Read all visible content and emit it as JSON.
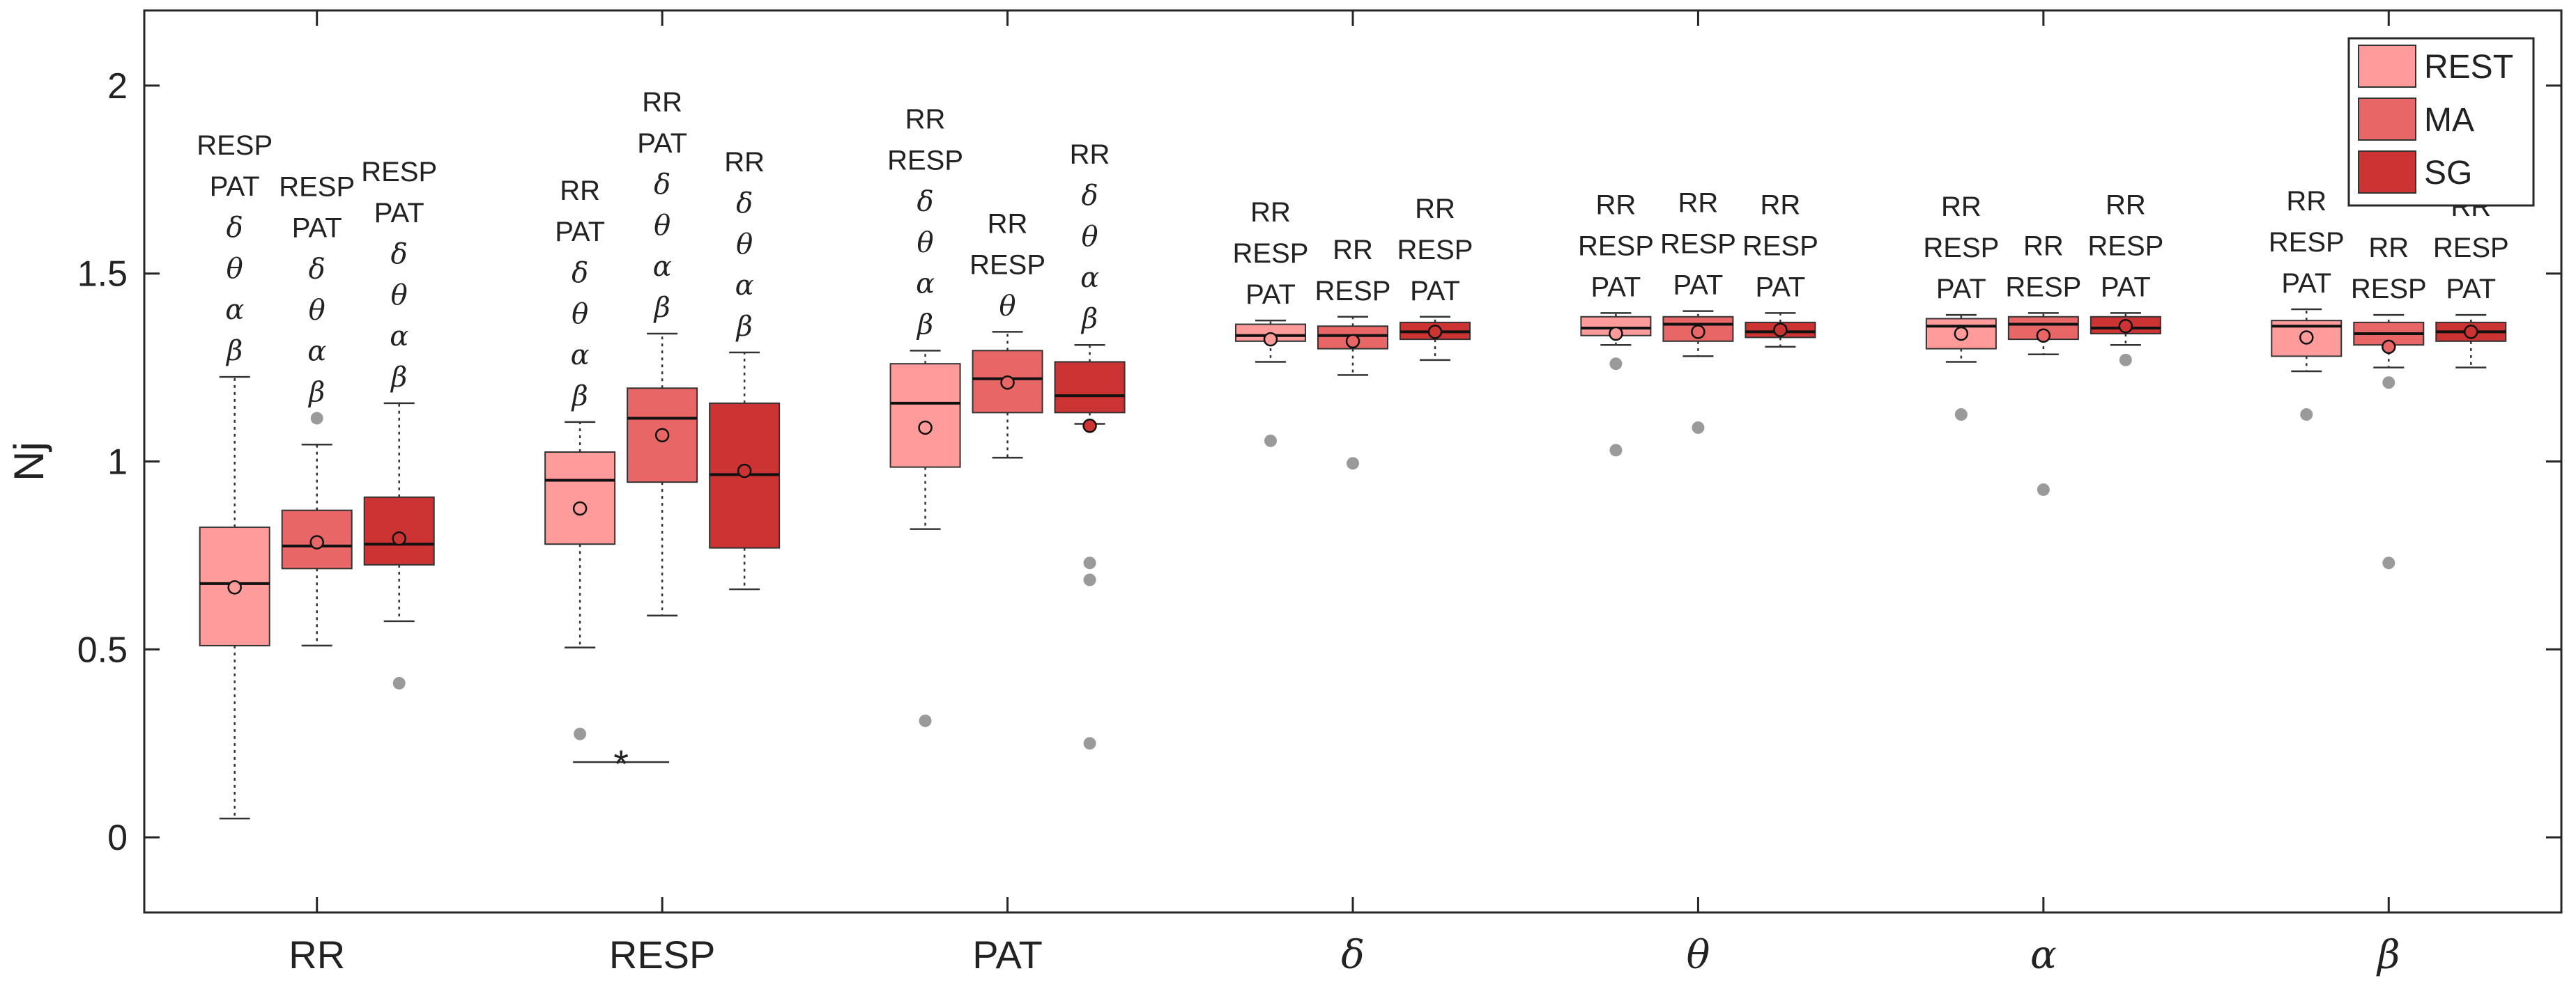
{
  "chart_data": {
    "type": "box",
    "ylabel": "Nj",
    "ylim": [
      -0.2,
      2.2
    ],
    "yticks": [
      "0",
      "0.5",
      "1",
      "1.5",
      "2"
    ],
    "categories": [
      "RR",
      "RESP",
      "PAT",
      "δ",
      "θ",
      "α",
      "β"
    ],
    "legend_position": "top-right",
    "series": [
      {
        "name": "REST",
        "color": "#ff9b9b",
        "boxes": [
          {
            "q1": 0.51,
            "median": 0.675,
            "q3": 0.825,
            "mean": 0.665,
            "whisker_low": 0.05,
            "whisker_high": 1.225,
            "outliers": []
          },
          {
            "q1": 0.78,
            "median": 0.95,
            "q3": 1.025,
            "mean": 0.875,
            "whisker_low": 0.505,
            "whisker_high": 1.105,
            "outliers": [
              0.275
            ]
          },
          {
            "q1": 0.985,
            "median": 1.155,
            "q3": 1.26,
            "mean": 1.09,
            "whisker_low": 0.82,
            "whisker_high": 1.295,
            "outliers": [
              0.31
            ]
          },
          {
            "q1": 1.32,
            "median": 1.335,
            "q3": 1.365,
            "mean": 1.325,
            "whisker_low": 1.265,
            "whisker_high": 1.375,
            "outliers": [
              1.055
            ]
          },
          {
            "q1": 1.335,
            "median": 1.355,
            "q3": 1.385,
            "mean": 1.34,
            "whisker_low": 1.31,
            "whisker_high": 1.395,
            "outliers": [
              1.26,
              1.03
            ]
          },
          {
            "q1": 1.3,
            "median": 1.36,
            "q3": 1.38,
            "mean": 1.34,
            "whisker_low": 1.265,
            "whisker_high": 1.39,
            "outliers": [
              1.125
            ]
          },
          {
            "q1": 1.28,
            "median": 1.36,
            "q3": 1.375,
            "mean": 1.33,
            "whisker_low": 1.24,
            "whisker_high": 1.405,
            "outliers": [
              1.125
            ]
          }
        ]
      },
      {
        "name": "MA",
        "color": "#e96666",
        "boxes": [
          {
            "q1": 0.715,
            "median": 0.775,
            "q3": 0.87,
            "mean": 0.785,
            "whisker_low": 0.51,
            "whisker_high": 1.045,
            "outliers": [
              1.115
            ]
          },
          {
            "q1": 0.945,
            "median": 1.115,
            "q3": 1.195,
            "mean": 1.07,
            "whisker_low": 0.59,
            "whisker_high": 1.34,
            "outliers": []
          },
          {
            "q1": 1.13,
            "median": 1.22,
            "q3": 1.295,
            "mean": 1.21,
            "whisker_low": 1.01,
            "whisker_high": 1.345,
            "outliers": []
          },
          {
            "q1": 1.3,
            "median": 1.335,
            "q3": 1.36,
            "mean": 1.32,
            "whisker_low": 1.23,
            "whisker_high": 1.385,
            "outliers": [
              0.995
            ]
          },
          {
            "q1": 1.32,
            "median": 1.365,
            "q3": 1.385,
            "mean": 1.345,
            "whisker_low": 1.28,
            "whisker_high": 1.4,
            "outliers": [
              1.09
            ]
          },
          {
            "q1": 1.325,
            "median": 1.365,
            "q3": 1.385,
            "mean": 1.335,
            "whisker_low": 1.285,
            "whisker_high": 1.395,
            "outliers": [
              0.925
            ]
          },
          {
            "q1": 1.31,
            "median": 1.34,
            "q3": 1.37,
            "mean": 1.305,
            "whisker_low": 1.25,
            "whisker_high": 1.39,
            "outliers": [
              1.21,
              0.73
            ]
          }
        ]
      },
      {
        "name": "SG",
        "color": "#cc3333",
        "boxes": [
          {
            "q1": 0.725,
            "median": 0.78,
            "q3": 0.905,
            "mean": 0.795,
            "whisker_low": 0.575,
            "whisker_high": 1.155,
            "outliers": [
              0.41
            ]
          },
          {
            "q1": 0.77,
            "median": 0.965,
            "q3": 1.155,
            "mean": 0.975,
            "whisker_low": 0.66,
            "whisker_high": 1.29,
            "outliers": []
          },
          {
            "q1": 1.13,
            "median": 1.175,
            "q3": 1.265,
            "mean": 1.095,
            "whisker_low": 1.1,
            "whisker_high": 1.31,
            "outliers": [
              0.73,
              0.685,
              0.25
            ]
          },
          {
            "q1": 1.325,
            "median": 1.345,
            "q3": 1.37,
            "mean": 1.345,
            "whisker_low": 1.27,
            "whisker_high": 1.385,
            "outliers": []
          },
          {
            "q1": 1.33,
            "median": 1.345,
            "q3": 1.37,
            "mean": 1.35,
            "whisker_low": 1.305,
            "whisker_high": 1.395,
            "outliers": []
          },
          {
            "q1": 1.34,
            "median": 1.355,
            "q3": 1.385,
            "mean": 1.36,
            "whisker_low": 1.31,
            "whisker_high": 1.395,
            "outliers": [
              1.27
            ]
          },
          {
            "q1": 1.32,
            "median": 1.345,
            "q3": 1.37,
            "mean": 1.345,
            "whisker_low": 1.25,
            "whisker_high": 1.39,
            "outliers": []
          }
        ]
      }
    ],
    "annotations": [
      {
        "category": 0,
        "series": 0,
        "labels": [
          "RESP",
          "PAT",
          "δ",
          "θ",
          "α",
          "β"
        ]
      },
      {
        "category": 0,
        "series": 1,
        "labels": [
          "RESP",
          "PAT",
          "δ",
          "θ",
          "α",
          "β"
        ]
      },
      {
        "category": 0,
        "series": 2,
        "labels": [
          "RESP",
          "PAT",
          "δ",
          "θ",
          "α",
          "β"
        ]
      },
      {
        "category": 1,
        "series": 0,
        "labels": [
          "RR",
          "PAT",
          "δ",
          "θ",
          "α",
          "β"
        ]
      },
      {
        "category": 1,
        "series": 1,
        "labels": [
          "RR",
          "PAT",
          "δ",
          "θ",
          "α",
          "β"
        ]
      },
      {
        "category": 1,
        "series": 2,
        "labels": [
          "RR",
          "δ",
          "θ",
          "α",
          "β"
        ]
      },
      {
        "category": 2,
        "series": 0,
        "labels": [
          "RR",
          "RESP",
          "δ",
          "θ",
          "α",
          "β"
        ]
      },
      {
        "category": 2,
        "series": 1,
        "labels": [
          "RR",
          "RESP",
          "θ"
        ]
      },
      {
        "category": 2,
        "series": 2,
        "labels": [
          "RR",
          "δ",
          "θ",
          "α",
          "β"
        ]
      },
      {
        "category": 3,
        "series": 0,
        "labels": [
          "RR",
          "RESP",
          "PAT"
        ]
      },
      {
        "category": 3,
        "series": 1,
        "labels": [
          "RR",
          "RESP"
        ]
      },
      {
        "category": 3,
        "series": 2,
        "labels": [
          "RR",
          "RESP",
          "PAT"
        ]
      },
      {
        "category": 4,
        "series": 0,
        "labels": [
          "RR",
          "RESP",
          "PAT"
        ]
      },
      {
        "category": 4,
        "series": 1,
        "labels": [
          "RR",
          "RESP",
          "PAT"
        ]
      },
      {
        "category": 4,
        "series": 2,
        "labels": [
          "RR",
          "RESP",
          "PAT"
        ]
      },
      {
        "category": 5,
        "series": 0,
        "labels": [
          "RR",
          "RESP",
          "PAT"
        ]
      },
      {
        "category": 5,
        "series": 1,
        "labels": [
          "RR",
          "RESP"
        ]
      },
      {
        "category": 5,
        "series": 2,
        "labels": [
          "RR",
          "RESP",
          "PAT"
        ]
      },
      {
        "category": 6,
        "series": 0,
        "labels": [
          "RR",
          "RESP",
          "PAT"
        ]
      },
      {
        "category": 6,
        "series": 1,
        "labels": [
          "RR",
          "RESP"
        ]
      },
      {
        "category": 6,
        "series": 2,
        "labels": [
          "RR",
          "RESP",
          "PAT"
        ]
      }
    ],
    "significance_marker": {
      "symbol": "*",
      "y": 0.2,
      "from_category": 1,
      "from_series": 0,
      "to_category": 1,
      "to_series": 1
    }
  }
}
